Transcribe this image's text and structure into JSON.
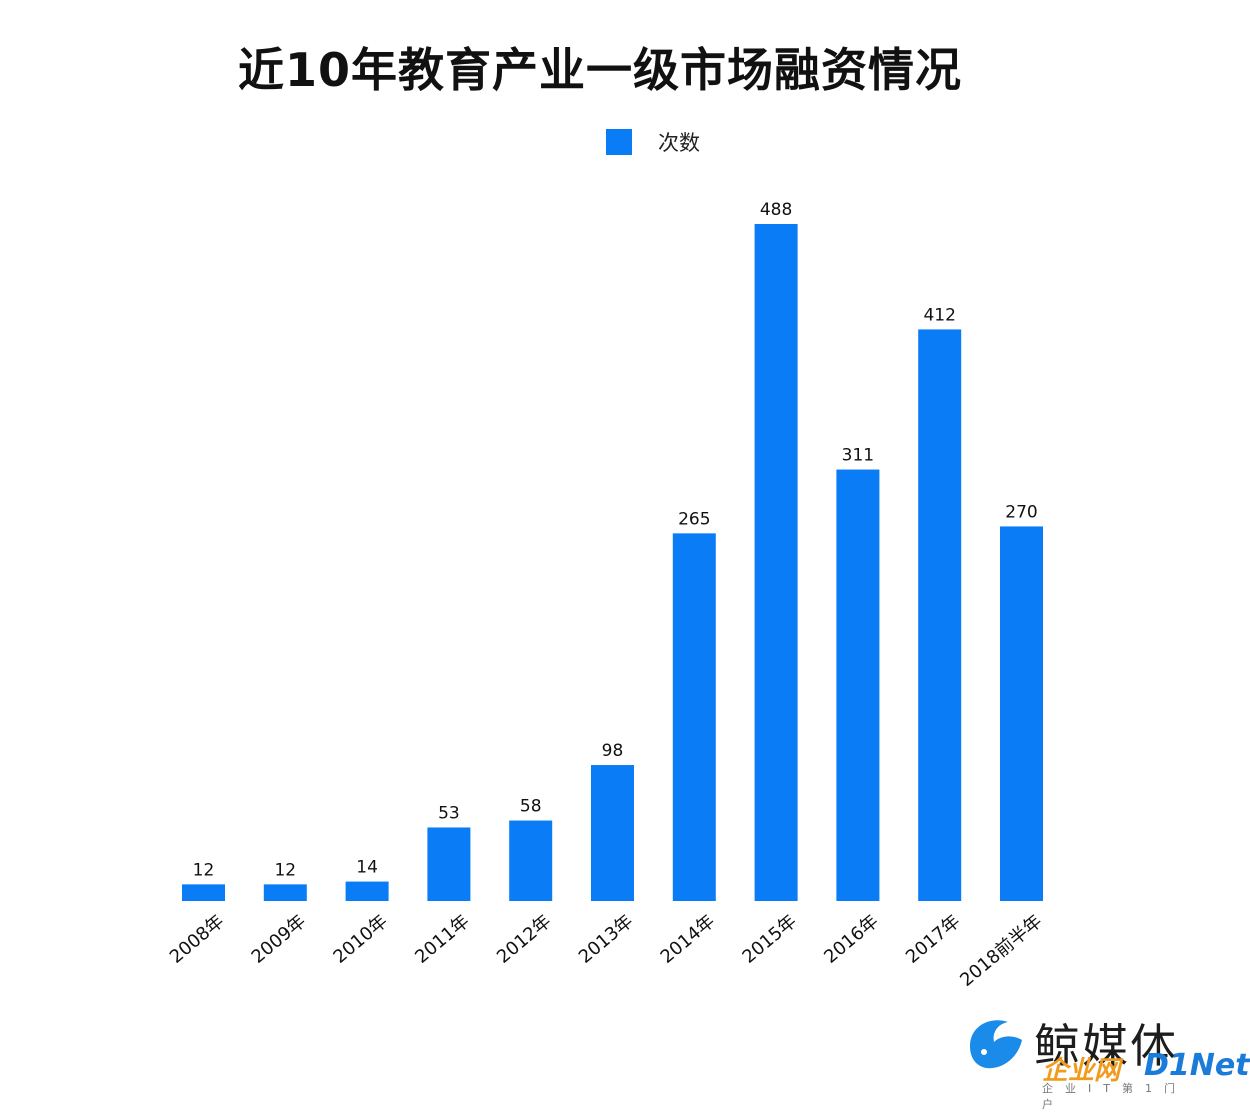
{
  "title": "近10年教育产业一级市场融资情况",
  "legend": {
    "label": "次数",
    "color": "#0a7cf5"
  },
  "chart_data": {
    "type": "bar",
    "categories": [
      "2008年",
      "2009年",
      "2010年",
      "2011年",
      "2012年",
      "2013年",
      "2014年",
      "2015年",
      "2016年",
      "2017年",
      "2018前半年"
    ],
    "series": [
      {
        "name": "次数",
        "values": [
          12,
          12,
          14,
          53,
          58,
          98,
          265,
          488,
          311,
          412,
          270
        ],
        "color": "#0a7cf5"
      }
    ],
    "title": "近10年教育产业一级市场融资情况",
    "xlabel": "",
    "ylabel": "",
    "ylim": [
      0,
      500
    ],
    "grid": false,
    "legend_position": "top-center",
    "data_labels": true
  },
  "watermark": {
    "logo_text": "鲸媒体",
    "sub_text": "企业网",
    "brand": "D1Net",
    "tagline": "企业IT第1门户"
  }
}
